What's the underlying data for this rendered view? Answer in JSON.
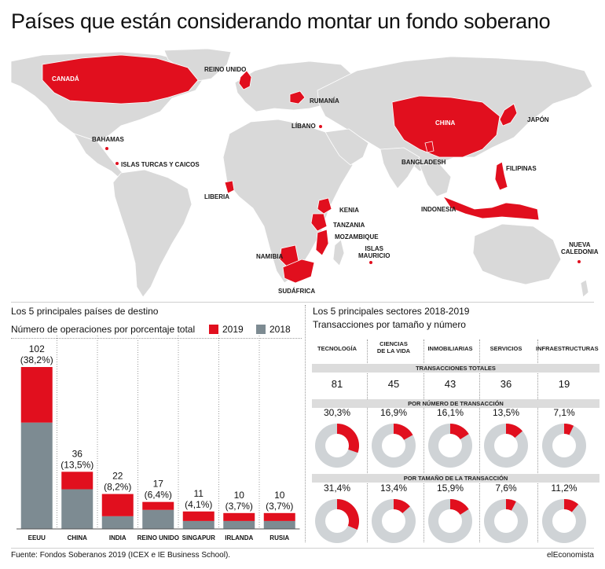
{
  "title": "Países que están considerando montar un fondo soberano",
  "map": {
    "countries_red": [
      {
        "name": "CANADÁ",
        "label": "CANADÁ"
      },
      {
        "name": "REINO UNIDO",
        "label": "REINO UNIDO"
      },
      {
        "name": "RUMANÍA",
        "label": "RUMANÍA"
      },
      {
        "name": "LÍBANO",
        "label": "LÍBANO"
      },
      {
        "name": "CHINA",
        "label": "CHINA"
      },
      {
        "name": "JAPÓN",
        "label": "JAPÓN"
      },
      {
        "name": "BANGLADESH",
        "label": "BANGLADESH"
      },
      {
        "name": "FILIPINAS",
        "label": "FILIPINAS"
      },
      {
        "name": "INDONESIA",
        "label": "INDONESIA"
      },
      {
        "name": "BAHAMAS",
        "label": "BAHAMAS"
      },
      {
        "name": "ISLAS TURCAS Y CAICOS",
        "label": "ISLAS TURCAS Y CAICOS"
      },
      {
        "name": "LIBERIA",
        "label": "LIBERIA"
      },
      {
        "name": "KENIA",
        "label": "KENIA"
      },
      {
        "name": "TANZANIA",
        "label": "TANZANIA"
      },
      {
        "name": "MOZAMBIQUE",
        "label": "MOZAMBIQUE"
      },
      {
        "name": "NAMIBIA",
        "label": "NAMIBIA"
      },
      {
        "name": "SUDÁFRICA",
        "label": "SUDÁFRICA"
      },
      {
        "name": "ISLAS MAURICIO",
        "label": "ISLAS\nMAURICIO"
      },
      {
        "name": "NUEVA CALEDONIA",
        "label": "NUEVA\nCALEDONIA"
      }
    ],
    "colors": {
      "land": "#d9d9d9",
      "highlight": "#e10f1e",
      "border": "#ffffff"
    }
  },
  "left_chart": {
    "title": "Los 5 principales países de destino",
    "subtitle": "Número de operaciones por porcentaje total",
    "legend": [
      {
        "label": "2019",
        "color": "#e10f1e"
      },
      {
        "label": "2018",
        "color": "#7d8b92"
      }
    ]
  },
  "right_panel": {
    "title": "Los 5 principales sectores 2018-2019",
    "subtitle": "Transacciones por tamaño y número",
    "band_total": "TRANSACCIONES TOTALES",
    "band_number": "POR NÚMERO DE TRANSACCIÓN",
    "band_size": "POR TAMAÑO DE LA TRANSACCIÓN",
    "sectors": [
      "TECNOLOGÍA",
      "CIENCIAS\nDE LA VIDA",
      "INMOBILIARIAS",
      "SERVICIOS",
      "INFRAESTRUCTURAS"
    ]
  },
  "chart_data": [
    {
      "type": "bar",
      "title": "Los 5 principales países de destino",
      "subtitle": "Número de operaciones por porcentaje total",
      "categories": [
        "EEUU",
        "CHINA",
        "INDIA",
        "REINO UNIDO",
        "SINGAPUR",
        "IRLANDA",
        "RUSIA"
      ],
      "value_labels": [
        "102",
        "36",
        "22",
        "17",
        "11",
        "10",
        "10"
      ],
      "percent_labels": [
        "(38,2%)",
        "(13,5%)",
        "(8,2%)",
        "(6,4%)",
        "(4,1%)",
        "(3,7%)",
        "(3,7%)"
      ],
      "totals": [
        102,
        36,
        22,
        17,
        11,
        10,
        10
      ],
      "series": [
        {
          "name": "2018",
          "color": "#7d8b92",
          "values": [
            67,
            25,
            8,
            12,
            5,
            5,
            5
          ]
        },
        {
          "name": "2019",
          "color": "#e10f1e",
          "values": [
            35,
            11,
            14,
            5,
            6,
            5,
            5
          ]
        }
      ],
      "stacked": true,
      "ylim": [
        0,
        102
      ]
    },
    {
      "type": "table",
      "title": "Los 5 principales sectores 2018-2019",
      "categories": [
        "TECNOLOGÍA",
        "CIENCIAS DE LA VIDA",
        "INMOBILIARIAS",
        "SERVICIOS",
        "INFRAESTRUCTURAS"
      ],
      "transacciones_totales": [
        81,
        45,
        43,
        36,
        19
      ]
    },
    {
      "type": "pie",
      "title": "POR NÚMERO DE TRANSACCIÓN",
      "categories": [
        "TECNOLOGÍA",
        "CIENCIAS DE LA VIDA",
        "INMOBILIARIAS",
        "SERVICIOS",
        "INFRAESTRUCTURAS"
      ],
      "values": [
        30.3,
        16.9,
        16.1,
        13.5,
        7.1
      ],
      "labels": [
        "30,3%",
        "16,9%",
        "16,1%",
        "13,5%",
        "7,1%"
      ]
    },
    {
      "type": "pie",
      "title": "POR TAMAÑO DE LA TRANSACCIÓN",
      "categories": [
        "TECNOLOGÍA",
        "CIENCIAS DE LA VIDA",
        "INMOBILIARIAS",
        "SERVICIOS",
        "INFRAESTRUCTURAS"
      ],
      "values": [
        31.4,
        13.4,
        15.9,
        7.6,
        11.2
      ],
      "labels": [
        "31,4%",
        "13,4%",
        "15,9%",
        "7,6%",
        "11,2%"
      ]
    }
  ],
  "footer": {
    "source": "Fuente: Fondos Soberanos 2019 (ICEX e IE Business School).",
    "brand": "elEconomista"
  }
}
